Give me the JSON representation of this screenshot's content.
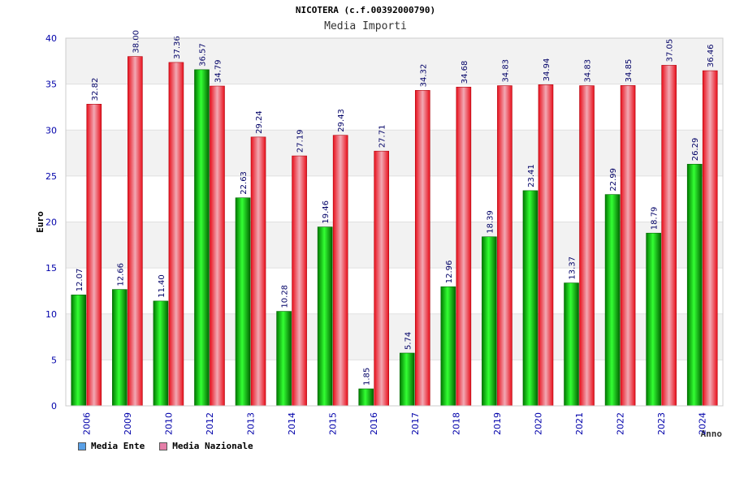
{
  "header": {
    "title": "NICOTERA (c.f.00392000790)",
    "subtitle": "Media Importi"
  },
  "colors": {
    "series_ente": "#00b000",
    "series_nazionale": "#e8101c",
    "legend_ente": "#5aa0e6",
    "legend_nazionale": "#e57fa8",
    "axis_text": "#0000aa",
    "grid_band": "#f2f2f2"
  },
  "chart_data": {
    "type": "bar",
    "title": "NICOTERA (c.f.00392000790)",
    "subtitle": "Media Importi",
    "xlabel": "Anno",
    "ylabel": "Euro",
    "ylim": [
      0,
      40
    ],
    "yticks": [
      "0",
      "5",
      "10",
      "15",
      "20",
      "25",
      "30",
      "35",
      "40"
    ],
    "categories": [
      "2006",
      "2009",
      "2010",
      "2012",
      "2013",
      "2014",
      "2015",
      "2016",
      "2017",
      "2018",
      "2019",
      "2020",
      "2021",
      "2022",
      "2023",
      "2024"
    ],
    "series": [
      {
        "name": "Media Ente",
        "values": [
          12.07,
          12.66,
          11.4,
          36.57,
          22.63,
          10.28,
          19.46,
          1.85,
          5.74,
          12.96,
          18.39,
          23.41,
          13.37,
          22.99,
          18.79,
          26.29
        ],
        "labels": [
          "12.07",
          "12.66",
          "11.40",
          "36.57",
          "22.63",
          "10.28",
          "19.46",
          "1.85",
          "5.74",
          "12.96",
          "18.39",
          "23.41",
          "13.37",
          "22.99",
          "18.79",
          "26.29"
        ]
      },
      {
        "name": "Media Nazionale",
        "values": [
          32.82,
          38.0,
          37.36,
          34.79,
          29.24,
          27.19,
          29.43,
          27.71,
          34.32,
          34.68,
          34.83,
          34.94,
          34.83,
          34.85,
          37.05,
          36.46
        ],
        "labels": [
          "32.82",
          "38.00",
          "37.36",
          "34.79",
          "29.24",
          "27.19",
          "29.43",
          "27.71",
          "34.32",
          "34.68",
          "34.83",
          "34.94",
          "34.83",
          "34.85",
          "37.05",
          "36.46"
        ]
      }
    ],
    "legend": [
      "Media Ente",
      "Media Nazionale"
    ],
    "legend_position": "bottom-left",
    "grid": true
  }
}
